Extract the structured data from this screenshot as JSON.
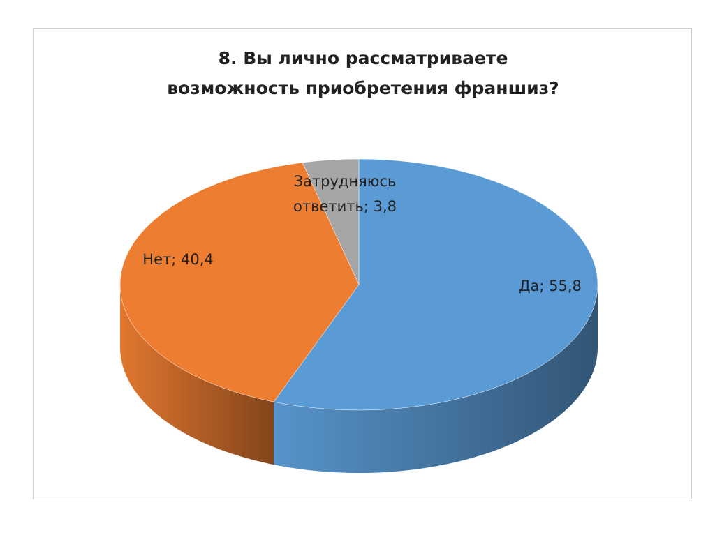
{
  "chart_data": {
    "type": "pie",
    "title": "8. Вы лично рассматриваете возможность приобретения франшиз?",
    "categories": [
      "Да",
      "Нет",
      "Затрудняюсь ответить"
    ],
    "values": [
      55.8,
      40.4,
      3.8
    ],
    "value_labels": [
      "Да; 55,8",
      "Нет; 40,4",
      "Затрудняюсь ответить; 3,8"
    ],
    "colors": [
      "#5b9bd5",
      "#ed7d31",
      "#a5a5a5"
    ]
  }
}
